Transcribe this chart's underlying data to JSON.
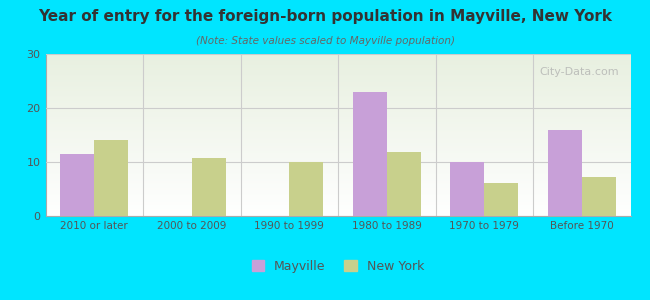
{
  "title": "Year of entry for the foreign-born population in Mayville, New York",
  "subtitle": "(Note: State values scaled to Mayville population)",
  "categories": [
    "2010 or later",
    "2000 to 2009",
    "1990 to 1999",
    "1980 to 1989",
    "1970 to 1979",
    "Before 1970"
  ],
  "mayville_values": [
    11.5,
    0,
    0,
    23,
    10,
    16
  ],
  "newyork_values": [
    14,
    10.7,
    10,
    11.8,
    6.2,
    7.2
  ],
  "mayville_color": "#c8a0d8",
  "newyork_color": "#c8d08c",
  "background_outer": "#00e5ff",
  "background_inner_top": "#e8f0e0",
  "background_inner_bottom": "#ffffff",
  "title_color": "#333333",
  "subtitle_color": "#666666",
  "axis_color": "#aaaaaa",
  "tick_color": "#555555",
  "ylim": [
    0,
    30
  ],
  "yticks": [
    0,
    10,
    20,
    30
  ],
  "bar_width": 0.35,
  "watermark": "City-Data.com"
}
